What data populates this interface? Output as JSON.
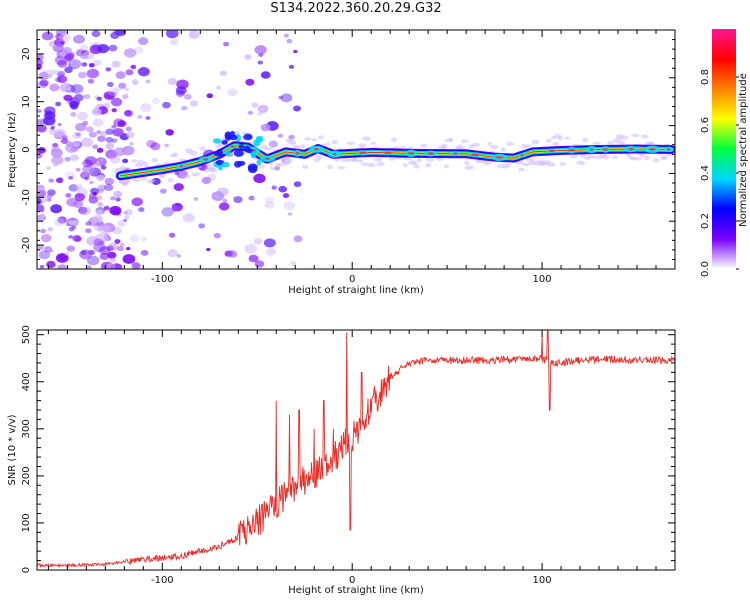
{
  "title": "S134.2022.360.20.29.G32",
  "chart_data": [
    {
      "type": "heatmap",
      "xlabel": "Height of straight line (km)",
      "ylabel": "Frequency (Hz)",
      "xlim": [
        -166,
        170
      ],
      "ylim": [
        -25,
        25
      ],
      "x_ticks": [
        -100,
        0,
        100
      ],
      "x_tick_labels": [
        "-100",
        "0",
        "100"
      ],
      "y_ticks": [
        -20,
        -10,
        0,
        10,
        20
      ],
      "y_tick_labels": [
        "-20",
        "-10",
        "0",
        "10",
        "20"
      ],
      "colorbar": {
        "label": "Normalized spectral amplitude",
        "range": [
          0,
          1
        ],
        "ticks": [
          0.0,
          0.2,
          0.4,
          0.6,
          0.8
        ],
        "tick_labels": [
          "0.0",
          "0.2",
          "0.4",
          "0.6",
          "0.8"
        ],
        "colormap": [
          "#ffffff",
          "#7a00ff",
          "#0000ff",
          "#00d5ff",
          "#00ff40",
          "#ffff00",
          "#ff7f00",
          "#ff0000",
          "#ff1493"
        ]
      },
      "ridge": {
        "x": [
          -122,
          -110,
          -100,
          -90,
          -80,
          -70,
          -62,
          -55,
          -45,
          -35,
          -25,
          -18,
          -10,
          0,
          10,
          30,
          60,
          75,
          85,
          95,
          110,
          130,
          150,
          168
        ],
        "freq": [
          -5.5,
          -4.8,
          -4.2,
          -3.5,
          -2.5,
          -1.0,
          0.8,
          0.5,
          -2.0,
          -0.5,
          -1.0,
          0.2,
          -1.0,
          -0.8,
          -0.6,
          -0.8,
          -0.9,
          -1.6,
          -1.8,
          -0.5,
          -0.2,
          0.0,
          0.1,
          0.0
        ]
      },
      "grid": false
    },
    {
      "type": "line",
      "xlabel": "Height of straight line (km)",
      "ylabel": "SNR (10 * v/v)",
      "xlim": [
        -166,
        170
      ],
      "ylim": [
        0,
        510
      ],
      "x_ticks": [
        -100,
        0,
        100
      ],
      "x_tick_labels": [
        "-100",
        "0",
        "100"
      ],
      "y_ticks": [
        0,
        100,
        200,
        300,
        400,
        500
      ],
      "y_tick_labels": [
        "0",
        "100",
        "200",
        "300",
        "400",
        "500"
      ],
      "color": "#ee2a24",
      "trend": {
        "x": [
          -166,
          -150,
          -130,
          -120,
          -110,
          -100,
          -90,
          -80,
          -70,
          -60,
          -50,
          -40,
          -30,
          -20,
          -10,
          0,
          10,
          20,
          30,
          40,
          60,
          100,
          105,
          130,
          170
        ],
        "y": [
          10,
          10,
          12,
          18,
          22,
          25,
          30,
          40,
          50,
          70,
          100,
          140,
          180,
          200,
          240,
          280,
          350,
          410,
          440,
          445,
          445,
          448,
          440,
          448,
          445
        ]
      },
      "spikes": [
        {
          "x": -40,
          "y": 360
        },
        {
          "x": -37,
          "y": 180
        },
        {
          "x": -33,
          "y": 330
        },
        {
          "x": -28,
          "y": 340
        },
        {
          "x": -25,
          "y": 160
        },
        {
          "x": -20,
          "y": 300
        },
        {
          "x": -15,
          "y": 360
        },
        {
          "x": -10,
          "y": 300
        },
        {
          "x": -3,
          "y": 505
        },
        {
          "x": -1,
          "y": 85
        },
        {
          "x": 5,
          "y": 420
        },
        {
          "x": 100,
          "y": 500
        },
        {
          "x": 103,
          "y": 510
        },
        {
          "x": 104,
          "y": 340
        }
      ],
      "grid": false
    }
  ]
}
